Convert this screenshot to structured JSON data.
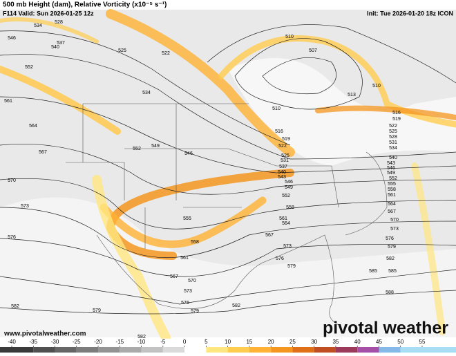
{
  "header": {
    "title": "500 mb Height (dam), Relative Vorticity (x10⁻⁵ s⁻¹)",
    "valid": "F114 Valid: Sun 2026-01-25 12z",
    "init": "Init: Tue 2026-01-20 18z ICON"
  },
  "map": {
    "contour_labels": [
      "534",
      "528",
      "537",
      "540",
      "546",
      "552",
      "525",
      "522",
      "534",
      "561",
      "564",
      "567",
      "570",
      "573",
      "576",
      "582",
      "579",
      "582",
      "552",
      "549",
      "546",
      "555",
      "558",
      "561",
      "567",
      "570",
      "573",
      "576",
      "579",
      "582",
      "510",
      "507",
      "513",
      "510",
      "510",
      "516",
      "519",
      "522",
      "525",
      "531",
      "537",
      "540",
      "543",
      "546",
      "549",
      "552",
      "558",
      "561",
      "564",
      "567",
      "573",
      "576",
      "579",
      "585",
      "516",
      "519",
      "522",
      "525",
      "528",
      "531",
      "534",
      "540",
      "543",
      "546",
      "549",
      "552",
      "555",
      "558",
      "561",
      "564",
      "567",
      "570",
      "573",
      "576",
      "579",
      "582",
      "585",
      "588"
    ]
  },
  "footer": {
    "website": "www.pivotalweather.com",
    "logo": "pivotal weather"
  },
  "colorbar": {
    "ticks": [
      -40,
      -35,
      -30,
      -25,
      -20,
      -15,
      -10,
      -5,
      0,
      5,
      10,
      15,
      20,
      25,
      30,
      35,
      40,
      45,
      50,
      55
    ],
    "colors": [
      "#3a3a3a",
      "#505050",
      "#666666",
      "#7c7c7c",
      "#939393",
      "#aaaaaa",
      "#c2c2c2",
      "#dadada",
      "#ffffff",
      "#ffe680",
      "#ffcc4d",
      "#ffb233",
      "#f5961f",
      "#e07018",
      "#c04e22",
      "#9c3a5c",
      "#a64fa6",
      "#86b8e8",
      "#a9dcf5"
    ]
  }
}
